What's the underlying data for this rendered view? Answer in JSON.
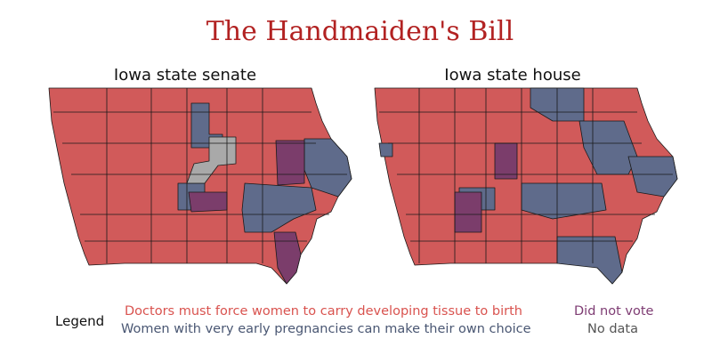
{
  "title": "The Handmaiden's Bill",
  "maps": {
    "senate_title": "Iowa state senate",
    "house_title": "Iowa state house"
  },
  "legend": {
    "label": "Legend",
    "yes": "Doctors must force women to carry developing tissue to birth",
    "no": "Women with very early pregnancies can make their own choice",
    "did_not_vote": "Did not vote",
    "no_data": "No data"
  },
  "colors": {
    "yes": "#d15a5a",
    "no": "#5f6b8b",
    "did_not_vote": "#7b3d6b",
    "no_data": "#a9a9a9",
    "title": "#b22222"
  }
}
